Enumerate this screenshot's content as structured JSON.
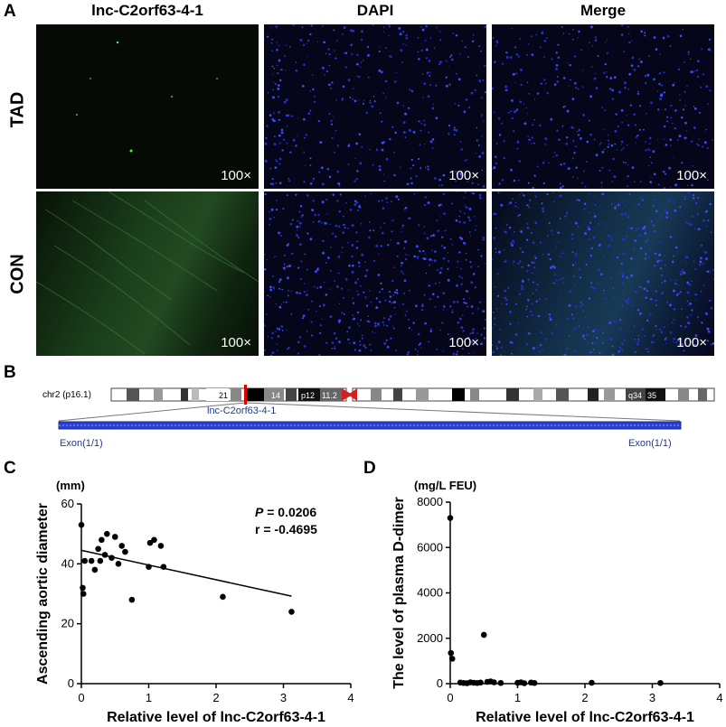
{
  "panelA": {
    "letter": "A",
    "columns": [
      "lnc-C2orf63-4-1",
      "DAPI",
      "Merge"
    ],
    "rows": [
      "TAD",
      "CON"
    ],
    "magnification": "100×"
  },
  "panelB": {
    "letter": "B",
    "chromosome": "chr2 (p16.1)",
    "bands": [
      "21",
      "14",
      "p12",
      "11.2",
      "q34",
      "35"
    ],
    "gene": "lnc-C2orf63-4-1",
    "exon_left": "Exon(1/1)",
    "exon_right": "Exon(1/1)"
  },
  "chart_data": [
    {
      "type": "scatter",
      "panel": "C",
      "unit": "(mm)",
      "xlabel": "Relative level of lnc-C2orf63-4-1",
      "ylabel": "Ascending aortic diameter",
      "xlim": [
        0,
        4
      ],
      "ylim": [
        0,
        60
      ],
      "xticks": [
        0,
        1,
        2,
        3,
        4
      ],
      "yticks": [
        0,
        20,
        40,
        60
      ],
      "stats": {
        "p_label": "P",
        "p_value": "= 0.0206",
        "r_text": "r = -0.4695"
      },
      "points": [
        [
          0.0,
          53
        ],
        [
          0.02,
          32
        ],
        [
          0.03,
          30
        ],
        [
          0.05,
          41
        ],
        [
          0.15,
          41
        ],
        [
          0.2,
          38
        ],
        [
          0.25,
          45
        ],
        [
          0.28,
          41
        ],
        [
          0.3,
          48
        ],
        [
          0.35,
          43
        ],
        [
          0.38,
          50
        ],
        [
          0.45,
          42
        ],
        [
          0.5,
          49
        ],
        [
          0.55,
          40
        ],
        [
          0.6,
          46
        ],
        [
          0.65,
          44
        ],
        [
          0.75,
          28
        ],
        [
          1.0,
          39
        ],
        [
          1.02,
          47
        ],
        [
          1.08,
          48
        ],
        [
          1.18,
          46
        ],
        [
          1.22,
          39
        ],
        [
          2.1,
          29
        ],
        [
          3.12,
          24
        ]
      ],
      "fit": [
        [
          0.0,
          44.5
        ],
        [
          3.12,
          29.2
        ]
      ]
    },
    {
      "type": "scatter",
      "panel": "D",
      "unit": "(mg/L FEU)",
      "xlabel": "Relative level of lnc-C2orf63-4-1",
      "ylabel": "The level of plasma D-dimer",
      "xlim": [
        0,
        4
      ],
      "ylim": [
        0,
        8000
      ],
      "xticks": [
        0,
        1,
        2,
        3,
        4
      ],
      "yticks": [
        0,
        2000,
        4000,
        6000,
        8000
      ],
      "points": [
        [
          0.0,
          7300
        ],
        [
          0.01,
          1350
        ],
        [
          0.03,
          1100
        ],
        [
          0.15,
          50
        ],
        [
          0.2,
          30
        ],
        [
          0.25,
          20
        ],
        [
          0.3,
          60
        ],
        [
          0.35,
          40
        ],
        [
          0.4,
          30
        ],
        [
          0.45,
          50
        ],
        [
          0.5,
          2150
        ],
        [
          0.55,
          80
        ],
        [
          0.6,
          100
        ],
        [
          0.65,
          60
        ],
        [
          0.75,
          30
        ],
        [
          1.0,
          40
        ],
        [
          1.05,
          60
        ],
        [
          1.1,
          20
        ],
        [
          1.2,
          50
        ],
        [
          1.25,
          30
        ],
        [
          2.1,
          40
        ],
        [
          3.12,
          30
        ]
      ]
    }
  ]
}
